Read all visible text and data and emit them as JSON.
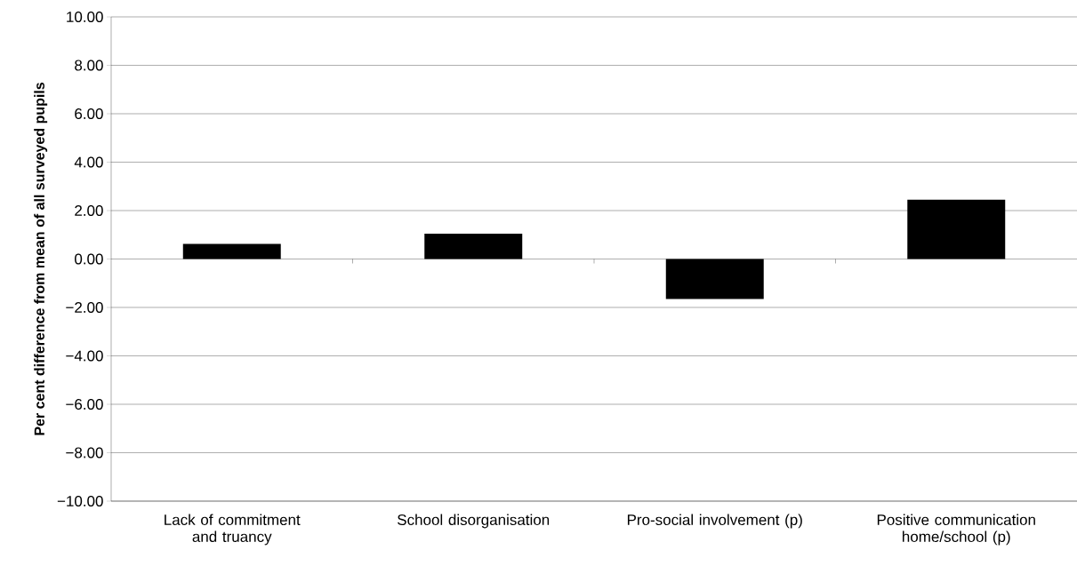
{
  "chart_data": {
    "type": "bar",
    "ylabel": "Per cent difference from mean of all surveyed pupils",
    "categories": [
      "Lack of commitment and truancy",
      "School disorganisation",
      "Pro-social involvement (p)",
      "Positive communication home/school (p)"
    ],
    "values": [
      0.62,
      1.05,
      -1.65,
      2.45
    ],
    "color": "#000000",
    "ylim": [
      -10,
      10
    ],
    "yticks": [
      {
        "value": -10,
        "label": "−10.00"
      },
      {
        "value": -8,
        "label": "−8.00"
      },
      {
        "value": -6,
        "label": "−6.00"
      },
      {
        "value": -4,
        "label": "−4.00"
      },
      {
        "value": -2,
        "label": "−2.00"
      },
      {
        "value": 0,
        "label": "0.00"
      },
      {
        "value": 2,
        "label": "2.00"
      },
      {
        "value": 4,
        "label": "4.00"
      },
      {
        "value": 6,
        "label": "6.00"
      },
      {
        "value": 8,
        "label": "8.00"
      },
      {
        "value": 10,
        "label": "10.00"
      }
    ],
    "grid": "y"
  }
}
